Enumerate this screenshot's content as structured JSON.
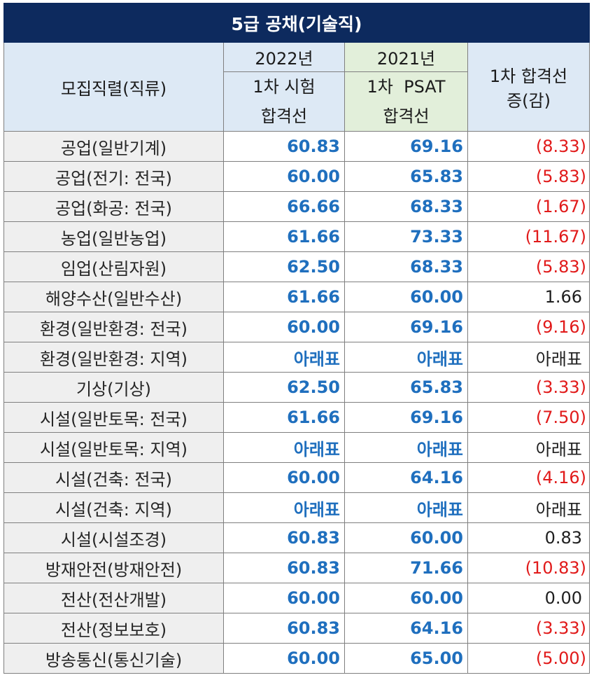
{
  "title": "5급 공채(기술직)",
  "header": {
    "job_col": "모집직렬(직류)",
    "year_2022": "2022년",
    "year_2021": "2021년",
    "sub_2022_line1": "1차 시험",
    "sub_2022_line2": "합격선",
    "sub_2021_line1": "1차  PSAT",
    "sub_2021_line2": "합격선",
    "diff_line1": "1차 합격선",
    "diff_line2": "증(감)"
  },
  "rows": [
    {
      "job": "공업(일반기계)",
      "v2022": "60.83",
      "v2021": "69.16",
      "diff": "(8.33)",
      "neg": true
    },
    {
      "job": "공업(전기: 전국)",
      "v2022": "60.00",
      "v2021": "65.83",
      "diff": "(5.83)",
      "neg": true
    },
    {
      "job": "공업(화공: 전국)",
      "v2022": "66.66",
      "v2021": "68.33",
      "diff": "(1.67)",
      "neg": true
    },
    {
      "job": "농업(일반농업)",
      "v2022": "61.66",
      "v2021": "73.33",
      "diff": "(11.67)",
      "neg": true
    },
    {
      "job": "임업(산림자원)",
      "v2022": "62.50",
      "v2021": "68.33",
      "diff": "(5.83)",
      "neg": true
    },
    {
      "job": "해양수산(일반수산)",
      "v2022": "61.66",
      "v2021": "60.00",
      "diff": "1.66",
      "neg": false
    },
    {
      "job": "환경(일반환경: 전국)",
      "v2022": "60.00",
      "v2021": "69.16",
      "diff": "(9.16)",
      "neg": true
    },
    {
      "job": "환경(일반환경: 지역)",
      "v2022": "아래표",
      "v2021": "아래표",
      "diff": "아래표",
      "neg": false
    },
    {
      "job": "기상(기상)",
      "v2022": "62.50",
      "v2021": "65.83",
      "diff": "(3.33)",
      "neg": true
    },
    {
      "job": "시설(일반토목: 전국)",
      "v2022": "61.66",
      "v2021": "69.16",
      "diff": "(7.50)",
      "neg": true
    },
    {
      "job": "시설(일반토목: 지역)",
      "v2022": "아래표",
      "v2021": "아래표",
      "diff": "아래표",
      "neg": false
    },
    {
      "job": "시설(건축: 전국)",
      "v2022": "60.00",
      "v2021": "64.16",
      "diff": "(4.16)",
      "neg": true
    },
    {
      "job": "시설(건축: 지역)",
      "v2022": "아래표",
      "v2021": "아래표",
      "diff": "아래표",
      "neg": false
    },
    {
      "job": "시설(시설조경)",
      "v2022": "60.83",
      "v2021": "60.00",
      "diff": "0.83",
      "neg": false
    },
    {
      "job": "방재안전(방재안전)",
      "v2022": "60.83",
      "v2021": "71.66",
      "diff": "(10.83)",
      "neg": true
    },
    {
      "job": "전산(전산개발)",
      "v2022": "60.00",
      "v2021": "60.00",
      "diff": "0.00",
      "neg": false
    },
    {
      "job": "전산(정보보호)",
      "v2022": "60.83",
      "v2021": "64.16",
      "diff": "(3.33)",
      "neg": true
    },
    {
      "job": "방송통신(통신기술)",
      "v2022": "60.00",
      "v2021": "65.00",
      "diff": "(5.00)",
      "neg": true
    }
  ]
}
